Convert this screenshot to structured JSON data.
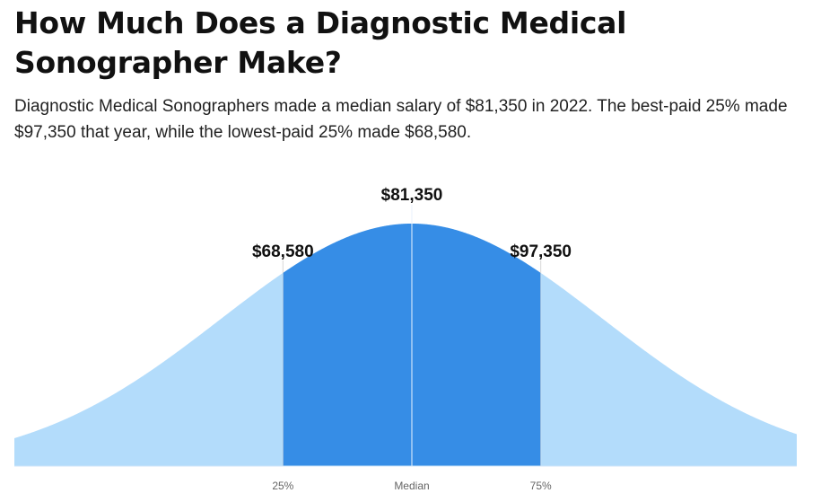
{
  "title": "How Much Does a Diagnostic Medical Sonographer Make?",
  "subtitle": "Diagnostic Medical Sonographers made a median salary of $81,350 in 2022. The best-paid 25% made $97,350 that year, while the lowest-paid 25% made $68,580.",
  "colors": {
    "outer_fill": "#b3dcfb",
    "inner_fill": "#368de6",
    "guide_line": "#d8d8d8",
    "median_line": "#e8f2fd",
    "baseline": "#cfe6f8"
  },
  "chart_data": {
    "type": "area",
    "distribution": "normal",
    "markers": [
      {
        "percentile": 25,
        "tick": "25%",
        "value_label": "$68,580"
      },
      {
        "percentile": 50,
        "tick": "Median",
        "value_label": "$81,350"
      },
      {
        "percentile": 75,
        "tick": "75%",
        "value_label": "$97,350"
      }
    ],
    "shaded_range": [
      "25%",
      "75%"
    ],
    "grid": false,
    "legend": "none"
  }
}
